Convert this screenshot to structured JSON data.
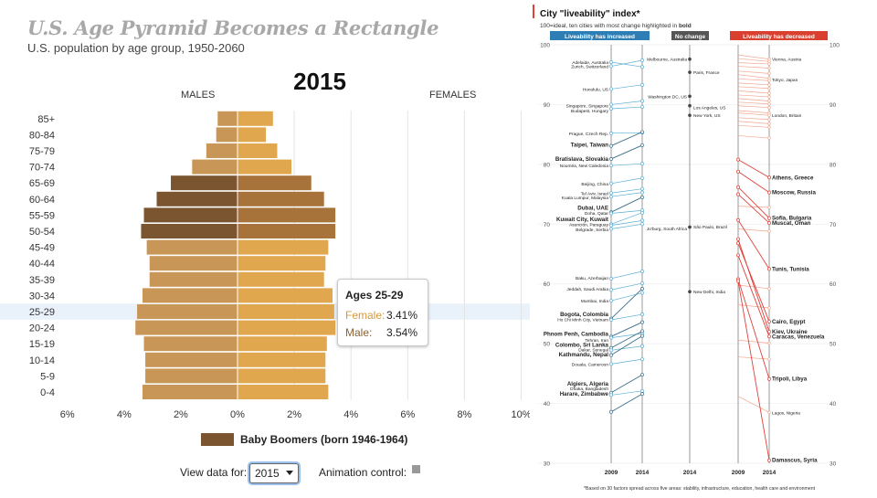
{
  "left": {
    "title": "U.S. Age Pyramid Becomes a Rectangle",
    "subtitle": "U.S. population by age group, 1950-2060",
    "year": "2015",
    "males_label": "MALES",
    "females_label": "FEMALES",
    "legend_label": "Baby Boomers (born 1946-1964)",
    "view_label": "View data for:",
    "select_value": "2015",
    "animation_label": "Animation control:",
    "tooltip": {
      "heading": "Ages 25-29",
      "female_label": "Female:",
      "female_value": "3.41%",
      "male_label": "Male:",
      "male_value": "3.54%"
    },
    "colors": {
      "male": "#c89656",
      "female": "#e1a74e",
      "male_boomer": "#7a552f",
      "female_boomer": "#a8733a",
      "highlight": "#e9f1fb"
    }
  },
  "right": {
    "title": "City \"liveability\" index*",
    "subtitle_pre": "100=ideal, ten cities with most change highlighted in ",
    "subtitle_bold": "bold",
    "headers": [
      "Liveability has increased",
      "No change",
      "Liveability has decreased"
    ],
    "x_labels": [
      "2009",
      "2014",
      "2014",
      "2009",
      "2014"
    ],
    "footnote": "*Based on 30 factors spread across five areas: stability, infrastructure, education, health care and environment",
    "colors": {
      "increased": "#5aaed4",
      "nochange": "#555555",
      "decreased": "#e0413a",
      "header_blue": "#2d7eb5",
      "header_gray": "#555555",
      "header_red": "#d9402f"
    }
  },
  "chart_data": [
    {
      "type": "bar",
      "title": "U.S. Age Pyramid Becomes a Rectangle",
      "subtitle": "U.S. population by age group, 1950-2060",
      "categories": [
        "85+",
        "80-84",
        "75-79",
        "70-74",
        "65-69",
        "60-64",
        "55-59",
        "50-54",
        "45-49",
        "40-44",
        "35-39",
        "30-34",
        "25-29",
        "20-24",
        "15-19",
        "10-14",
        "5-9",
        "0-4"
      ],
      "series": [
        {
          "name": "MALES",
          "values": [
            0.7,
            0.75,
            1.1,
            1.6,
            2.35,
            2.85,
            3.3,
            3.4,
            3.2,
            3.1,
            3.1,
            3.35,
            3.54,
            3.6,
            3.3,
            3.25,
            3.25,
            3.35
          ]
        },
        {
          "name": "FEMALES",
          "values": [
            1.25,
            1.0,
            1.4,
            1.9,
            2.6,
            3.05,
            3.45,
            3.45,
            3.2,
            3.1,
            3.05,
            3.35,
            3.41,
            3.45,
            3.15,
            3.1,
            3.1,
            3.2
          ]
        }
      ],
      "boomer_categories": [
        "65-69",
        "60-64",
        "55-59",
        "50-54"
      ],
      "xlim": [
        -6,
        10
      ],
      "x_ticks": [
        "6%",
        "4%",
        "2%",
        "0%",
        "2%",
        "4%",
        "6%",
        "8%",
        "10%"
      ],
      "highlighted": "25-29",
      "legend": [
        "Baby Boomers (born 1946-1964)"
      ]
    },
    {
      "type": "line",
      "title": "City \"liveability\" index*",
      "ylim": [
        30,
        100
      ],
      "y_ticks": [
        30,
        40,
        50,
        60,
        70,
        80,
        90,
        100
      ],
      "increased": {
        "x": [
          "2009",
          "2014"
        ],
        "labels": [
          {
            "text": "Adelaide, Australia",
            "y": 97.1
          },
          {
            "text": "Zurich, Switzerland",
            "y": 96.4
          },
          {
            "text": "Honolulu, US",
            "y": 92.6
          },
          {
            "text": "Singapore, Singapore",
            "y": 89.8
          },
          {
            "text": "Budapest, Hungary",
            "y": 89.0
          },
          {
            "text": "Prague, Czech Rep.",
            "y": 85.2
          },
          {
            "text": "Taipei, Taiwan",
            "y": 83.3,
            "bold": true
          },
          {
            "text": "Bratislava, Slovakia",
            "y": 80.9,
            "bold": true
          },
          {
            "text": "Nouméa, New Caledonia",
            "y": 79.8
          },
          {
            "text": "Beijing, China",
            "y": 76.8
          },
          {
            "text": "Tel Aviv, Israel",
            "y": 75.2
          },
          {
            "text": "Kuala Lumpur, Malaysia",
            "y": 74.5
          },
          {
            "text": "Dubai, UAE",
            "y": 72.7,
            "bold": true
          },
          {
            "text": "Doha, Qatar",
            "y": 71.9
          },
          {
            "text": "Kuwait City, Kuwait",
            "y": 70.8,
            "bold": true
          },
          {
            "text": "Asunción, Paraguay",
            "y": 70.0
          },
          {
            "text": "Belgrade, Serbia",
            "y": 69.1
          },
          {
            "text": "Baku, Azerbaijan",
            "y": 61.0
          },
          {
            "text": "Jeddah, Saudi Arabia",
            "y": 59.2
          },
          {
            "text": "Mumbai, India",
            "y": 57.2
          },
          {
            "text": "Bogota, Colombia",
            "y": 54.9,
            "bold": true
          },
          {
            "text": "Ho Chi Minh City, Vietnam",
            "y": 54.1
          },
          {
            "text": "Phnom Penh, Cambodia",
            "y": 51.6,
            "bold": true
          },
          {
            "text": "Tehran, Iran",
            "y": 50.6
          },
          {
            "text": "Colombo, Sri Lanka",
            "y": 49.8,
            "bold": true
          },
          {
            "text": "Dakar, Senegal",
            "y": 49.0
          },
          {
            "text": "Kathmandu, Nepal",
            "y": 48.2,
            "bold": true
          },
          {
            "text": "Douala, Cameroon",
            "y": 46.6
          },
          {
            "text": "Algiers, Algeria",
            "y": 43.3,
            "bold": true
          },
          {
            "text": "Dhaka, Bangladesh",
            "y": 42.5
          },
          {
            "text": "Harare, Zimbabwe",
            "y": 41.6,
            "bold": true
          }
        ],
        "lines": [
          [
            97.1,
            96.3
          ],
          [
            96.4,
            97.4
          ],
          [
            92.6,
            93.3
          ],
          [
            90.0,
            90.6
          ],
          [
            89.3,
            89.6
          ],
          [
            85.2,
            85.3
          ],
          [
            83.1,
            85.4
          ],
          [
            80.9,
            83.2
          ],
          [
            79.8,
            80.1
          ],
          [
            76.8,
            77.7
          ],
          [
            75.2,
            75.9
          ],
          [
            74.6,
            75.3
          ],
          [
            72.0,
            74.5
          ],
          [
            71.8,
            72.3
          ],
          [
            70.0,
            71.9
          ],
          [
            69.8,
            70.6
          ],
          [
            69.2,
            70.0
          ],
          [
            60.9,
            62.1
          ],
          [
            59.0,
            60.1
          ],
          [
            57.2,
            58.5
          ],
          [
            54.2,
            59.2
          ],
          [
            54.0,
            54.9
          ],
          [
            51.2,
            53.6
          ],
          [
            51.0,
            51.7
          ],
          [
            49.3,
            52.1
          ],
          [
            48.9,
            49.6
          ],
          [
            48.1,
            51.3
          ],
          [
            46.6,
            47.4
          ],
          [
            41.8,
            44.8
          ],
          [
            41.4,
            42.1
          ],
          [
            38.6,
            41.6
          ]
        ]
      },
      "no_change": {
        "x": [
          "2014"
        ],
        "labels": [
          {
            "text": "Melbourne, Australia",
            "y": 97.6
          },
          {
            "text": "Paris, France",
            "y": 95.4
          },
          {
            "text": "Washington DC, US",
            "y": 91.4
          },
          {
            "text": "Los Angeles, US",
            "y": 89.5
          },
          {
            "text": "New York, US",
            "y": 88.2
          },
          {
            "text": "Jo'burg, South Africa",
            "y": 69.3
          },
          {
            "text": "São Paulo, Brazil",
            "y": 69.6
          },
          {
            "text": "New Delhi, India",
            "y": 58.7
          }
        ],
        "values": [
          97.6,
          95.4,
          91.4,
          89.8,
          88.2,
          69.5,
          69.5,
          58.7
        ]
      },
      "decreased": {
        "x": [
          "2009",
          "2014"
        ],
        "labels": [
          {
            "text": "Vienna, Austria",
            "y": 97.6
          },
          {
            "text": "Tokyo, Japan",
            "y": 94.2
          },
          {
            "text": "London, Britain",
            "y": 88.2
          },
          {
            "text": "Athens, Greece",
            "y": 77.8,
            "bold": true
          },
          {
            "text": "Moscow, Russia",
            "y": 75.3,
            "bold": true
          },
          {
            "text": "Sofia, Bulgaria",
            "y": 71.0,
            "bold": true
          },
          {
            "text": "Muscat, Oman",
            "y": 70.2,
            "bold": true
          },
          {
            "text": "Tunis, Tunisia",
            "y": 62.5,
            "bold": true
          },
          {
            "text": "Cairo, Egypt",
            "y": 53.7,
            "bold": true
          },
          {
            "text": "Kiev, Ukraine",
            "y": 52.0,
            "bold": true
          },
          {
            "text": "Caracas, Venezuela",
            "y": 51.2,
            "bold": true
          },
          {
            "text": "Tripoli, Libya",
            "y": 44.1,
            "bold": true
          },
          {
            "text": "Lagos, Nigeria",
            "y": 38.5
          },
          {
            "text": "Damascus, Syria",
            "y": 30.5,
            "bold": true
          }
        ],
        "bold_lines": [
          [
            80.8,
            77.8
          ],
          [
            78.8,
            75.3
          ],
          [
            76.2,
            71.0
          ],
          [
            75.0,
            70.2
          ],
          [
            70.7,
            62.5
          ],
          [
            66.8,
            53.7
          ],
          [
            67.5,
            52.0
          ],
          [
            64.8,
            51.2
          ],
          [
            60.8,
            44.1
          ],
          [
            60.5,
            30.5
          ]
        ],
        "light_lines": [
          [
            98.3,
            97.6
          ],
          [
            97.7,
            97.2
          ],
          [
            97.0,
            96.8
          ],
          [
            96.4,
            96.1
          ],
          [
            95.6,
            95.2
          ],
          [
            95.0,
            94.4
          ],
          [
            94.3,
            94.0
          ],
          [
            93.6,
            93.3
          ],
          [
            93.0,
            92.7
          ],
          [
            92.3,
            91.9
          ],
          [
            91.6,
            91.3
          ],
          [
            91.0,
            90.6
          ],
          [
            90.4,
            90.1
          ],
          [
            89.8,
            89.5
          ],
          [
            89.0,
            88.6
          ],
          [
            88.6,
            88.2
          ],
          [
            87.8,
            87.5
          ],
          [
            87.2,
            86.8
          ],
          [
            86.5,
            86.2
          ],
          [
            84.8,
            84.4
          ],
          [
            73.0,
            72.8
          ],
          [
            69.2,
            68.8
          ],
          [
            59.8,
            59.2
          ],
          [
            56.5,
            56.0
          ],
          [
            50.6,
            50.1
          ],
          [
            47.8,
            47.4
          ],
          [
            41.2,
            38.5
          ]
        ]
      }
    }
  ]
}
